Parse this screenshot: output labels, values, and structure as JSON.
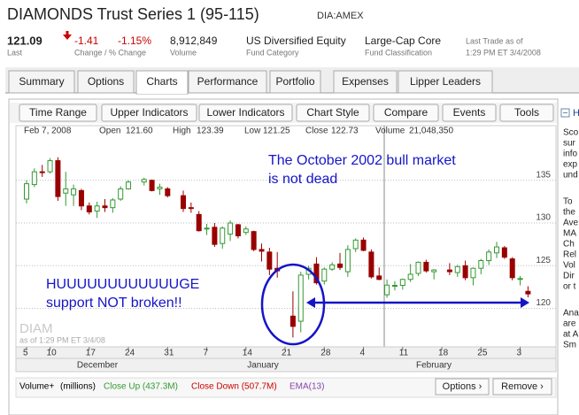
{
  "header": {
    "title": "DIAMONDS Trust Series 1 (95-115)",
    "ticker": "DIA:AMEX"
  },
  "quote": {
    "last": "121.09",
    "last_label": "Last",
    "change": "-1.41",
    "change_pct": "-1.15%",
    "change_label": "Change / % Change",
    "volume": "8,912,849",
    "volume_label": "Volume",
    "category": "US Diversified Equity",
    "category_label": "Fund Category",
    "classification": "Large-Cap Core",
    "classification_label": "Fund Classification",
    "trade_label": "Last Trade as of",
    "trade_time": "1:29 PM ET 3/4/2008"
  },
  "tabs": [
    "Summary",
    "Options",
    "Charts",
    "Performance",
    "Portfolio",
    "Expenses",
    "Lipper Leaders"
  ],
  "active_tab": "Charts",
  "toolbar": [
    "Time Range",
    "Upper Indicators",
    "Lower Indicators",
    "Chart Style",
    "Compare",
    "Events",
    "Tools"
  ],
  "sidebar": {
    "title": "H",
    "paragraphs": [
      [
        "Sco",
        "sur",
        "info",
        "exp",
        "und"
      ],
      [
        "To",
        "the",
        "Ave",
        "MA",
        "Ch",
        "Rel",
        "Vol",
        "Dir",
        "or t"
      ],
      [
        "Ana",
        "are",
        "at A",
        "Sm"
      ]
    ]
  },
  "chart_data": {
    "type": "candlestick",
    "info": {
      "date": "Feb 7, 2008",
      "items": [
        {
          "label": "Open",
          "value": "121.60"
        },
        {
          "label": "High",
          "value": "123.39"
        },
        {
          "label": "Low",
          "value": "121.25"
        },
        {
          "label": "Close",
          "value": "122.73"
        },
        {
          "label": "Volume",
          "value": "21,048,350"
        }
      ]
    },
    "categories": [
      "5",
      null,
      null,
      "10",
      null,
      null,
      null,
      null,
      "17",
      null,
      null,
      null,
      null,
      "24",
      null,
      null,
      null,
      null,
      "31",
      null,
      null,
      null,
      null,
      "7",
      null,
      null,
      null,
      null,
      "14",
      null,
      null,
      null,
      null,
      "21",
      null,
      null,
      null,
      null,
      "28",
      null,
      null,
      null,
      null,
      "4",
      null,
      null,
      null,
      null,
      "11",
      null,
      null,
      null,
      null,
      "18",
      null,
      null,
      null,
      null,
      "25",
      null,
      null,
      null,
      null,
      "3",
      null
    ],
    "month_labels": [
      "December",
      "January",
      "February"
    ],
    "open": [
      132.8,
      134.5,
      136.0,
      136.0,
      137.3,
      133.5,
      133.3,
      133.8,
      132.0,
      131.4,
      132.0,
      131.8,
      132.8,
      134.0,
      null,
      134.8,
      135.0,
      134.0,
      134.0,
      null,
      133.2,
      131.8,
      131.0,
      129.3,
      129.5,
      127.6,
      128.7,
      129.8,
      128.9,
      129.0,
      126.9,
      126.6,
      124.7,
      null,
      119.1,
      118.5,
      124.0,
      125.2,
      123.2,
      124.6,
      125.2,
      124.3,
      127.0,
      128.0,
      126.6,
      123.8,
      121.6,
      122.7,
      122.7,
      123.4,
      124.1,
      125.4,
      124.3,
      null,
      124.5,
      124.2,
      125.0,
      123.6,
      124.7,
      125.6,
      126.5,
      127.1,
      125.8,
      123.4,
      122.0
    ],
    "high": [
      135.0,
      136.4,
      136.8,
      137.6,
      137.7,
      136.0,
      134.5,
      134.0,
      132.4,
      132.5,
      132.8,
      132.9,
      134.3,
      135.0,
      null,
      135.3,
      135.1,
      134.6,
      134.2,
      null,
      133.8,
      132.4,
      131.4,
      129.9,
      130.0,
      129.6,
      130.3,
      129.9,
      129.6,
      129.1,
      127.6,
      127.1,
      126.6,
      null,
      122.0,
      124.3,
      125.0,
      126.0,
      124.8,
      125.4,
      126.5,
      127.4,
      128.2,
      128.3,
      126.9,
      124.8,
      123.39,
      123.2,
      123.5,
      125.2,
      125.5,
      125.7,
      124.6,
      null,
      125.3,
      125.1,
      125.6,
      124.8,
      125.8,
      126.9,
      127.8,
      127.3,
      126.0,
      123.8,
      122.6
    ],
    "low": [
      132.3,
      134.2,
      135.4,
      135.8,
      132.6,
      132.0,
      132.0,
      131.5,
      131.0,
      130.6,
      131.3,
      131.2,
      132.6,
      133.9,
      null,
      134.4,
      133.7,
      133.3,
      133.0,
      null,
      131.3,
      131.2,
      129.0,
      128.6,
      127.2,
      127.0,
      127.9,
      128.2,
      128.6,
      126.7,
      125.5,
      123.9,
      123.6,
      null,
      116.6,
      117.2,
      123.4,
      122.8,
      122.8,
      124.4,
      124.5,
      123.7,
      126.6,
      126.7,
      123.5,
      123.3,
      121.25,
      122.1,
      122.2,
      123.1,
      123.8,
      124.2,
      123.4,
      null,
      123.9,
      123.7,
      123.3,
      122.7,
      124.0,
      125.1,
      125.9,
      125.8,
      123.3,
      122.7,
      121.3
    ],
    "close": [
      134.6,
      136.0,
      135.9,
      137.3,
      133.1,
      134.0,
      134.0,
      132.0,
      131.3,
      132.0,
      131.8,
      132.7,
      134.0,
      134.8,
      null,
      135.1,
      133.8,
      134.2,
      133.2,
      null,
      131.7,
      131.7,
      129.1,
      129.4,
      127.5,
      129.4,
      130.0,
      128.5,
      129.3,
      126.9,
      126.7,
      124.6,
      124.4,
      null,
      117.9,
      123.9,
      124.7,
      123.0,
      124.6,
      125.1,
      124.8,
      126.9,
      128.0,
      126.8,
      123.7,
      123.4,
      122.73,
      122.7,
      123.4,
      124.0,
      125.4,
      124.4,
      124.5,
      null,
      124.3,
      124.9,
      123.6,
      124.7,
      125.6,
      126.6,
      127.2,
      126.0,
      123.6,
      123.5,
      121.7
    ],
    "up_color": "#339933",
    "down_color": "#990000",
    "ylim": [
      115.5,
      141.4
    ],
    "yticks": [
      120,
      125,
      130,
      135
    ],
    "grid": true,
    "annotations": [
      [
        "The October 2002 bull market",
        "is not dead"
      ],
      [
        "HUUUUUUUUUUUUGE",
        "support NOT broken!!"
      ]
    ],
    "watermark": "DIAM",
    "as_of": "as of 1:29 PM ET 3/4/08"
  },
  "volume_legend": {
    "title": "Volume+",
    "unit": "(millions)",
    "up": "Close Up (437.3M)",
    "down": "Close Down (507.7M)",
    "ema": "EMA(13)"
  },
  "panel_buttons": [
    "Options ›",
    "Remove ›"
  ]
}
